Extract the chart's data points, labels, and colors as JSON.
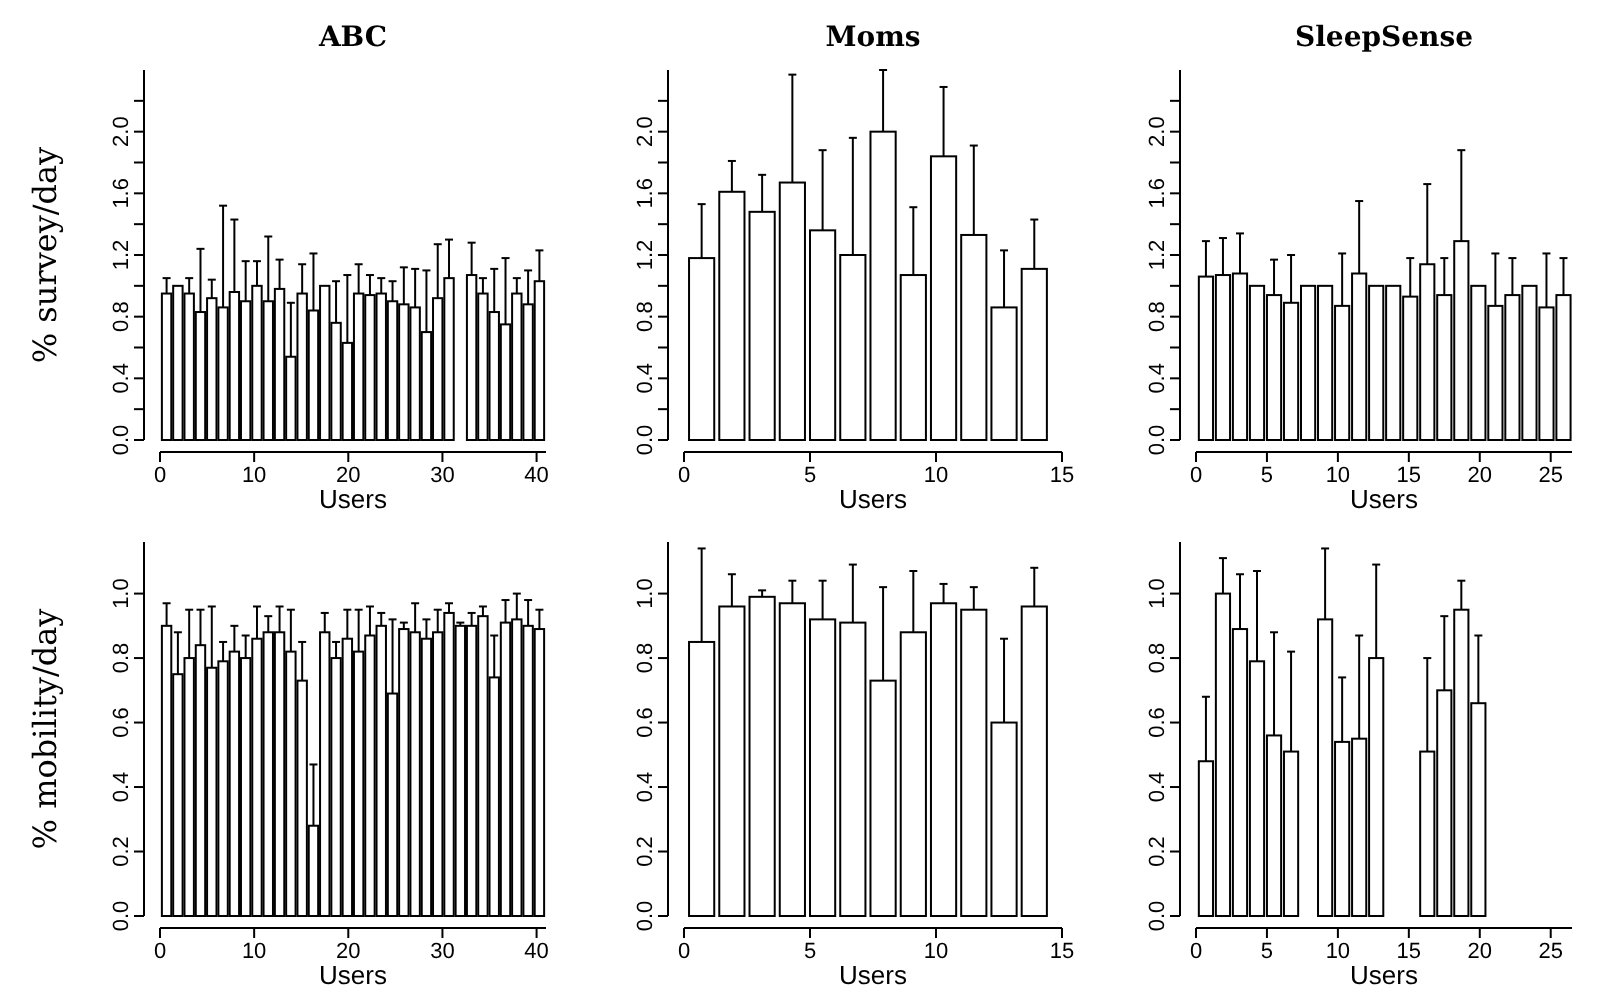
{
  "chart_data": [
    {
      "type": "bar",
      "title": "ABC",
      "ylabel": "% survey/day",
      "xlabel": "Users",
      "color": "#ffffff",
      "x": [
        0.7,
        1.9,
        3.1,
        4.3,
        5.5,
        6.7,
        7.9,
        9.1,
        10.3,
        11.5,
        12.7,
        13.9,
        15.1,
        16.3,
        17.5,
        18.7,
        19.9,
        21.1,
        22.3,
        23.5,
        24.7,
        25.9,
        27.1,
        28.3,
        29.5,
        30.7,
        33.1,
        34.3,
        35.5,
        36.7,
        37.9,
        39.1,
        40.3
      ],
      "values": [
        0.95,
        1.0,
        0.95,
        0.83,
        0.92,
        0.86,
        0.96,
        0.9,
        1.0,
        0.9,
        0.98,
        0.54,
        0.95,
        0.84,
        1.0,
        0.76,
        0.63,
        0.95,
        0.94,
        0.95,
        0.9,
        0.88,
        0.86,
        0.7,
        0.92,
        1.05,
        1.07,
        0.95,
        0.83,
        0.75,
        0.95,
        0.88,
        1.03
      ],
      "errors": [
        [
          0.95,
          1.05
        ],
        null,
        [
          0.95,
          1.05
        ],
        [
          0.83,
          1.24
        ],
        [
          0.92,
          1.04
        ],
        [
          0.86,
          1.52
        ],
        [
          0.96,
          1.43
        ],
        [
          0.9,
          1.16
        ],
        [
          1.0,
          1.16
        ],
        [
          0.9,
          1.32
        ],
        [
          0.98,
          1.17
        ],
        [
          0.54,
          0.89
        ],
        [
          0.95,
          1.14
        ],
        [
          0.84,
          1.21
        ],
        null,
        [
          0.76,
          1.03
        ],
        [
          0.63,
          1.07
        ],
        [
          0.95,
          1.14
        ],
        [
          0.94,
          1.07
        ],
        [
          0.95,
          1.05
        ],
        [
          0.9,
          1.03
        ],
        [
          0.88,
          1.12
        ],
        [
          0.86,
          1.11
        ],
        [
          0.7,
          1.1
        ],
        [
          0.92,
          1.27
        ],
        [
          1.05,
          1.3
        ],
        [
          1.07,
          1.28
        ],
        [
          0.95,
          1.05
        ],
        [
          0.83,
          1.11
        ],
        [
          0.75,
          1.18
        ],
        [
          0.95,
          1.05
        ],
        [
          0.88,
          1.1
        ],
        [
          1.03,
          1.23
        ]
      ],
      "xlim": [
        0,
        41
      ],
      "ylim": [
        0,
        2.4
      ],
      "xticks": [
        0,
        10,
        20,
        30,
        40
      ],
      "yticks": [
        {
          "value": 0,
          "label": "0.0"
        },
        {
          "value": 0.2,
          "label": null
        },
        {
          "value": 0.4,
          "label": "0.4"
        },
        {
          "value": 0.6,
          "label": null
        },
        {
          "value": 0.8,
          "label": "0.8"
        },
        {
          "value": 1,
          "label": null
        },
        {
          "value": 1.2,
          "label": "1.2"
        },
        {
          "value": 1.4,
          "label": null
        },
        {
          "value": 1.6,
          "label": "1.6"
        },
        {
          "value": 1.8,
          "label": null
        },
        {
          "value": 2,
          "label": "2.0"
        },
        {
          "value": 2.2,
          "label": null
        }
      ]
    },
    {
      "type": "bar",
      "title": "Moms",
      "xlabel": "Users",
      "color": "#ffffff",
      "x": [
        0.7,
        1.9,
        3.1,
        4.3,
        5.5,
        6.7,
        7.9,
        9.1,
        10.3,
        11.5,
        12.7,
        13.9
      ],
      "values": [
        1.18,
        1.61,
        1.48,
        1.67,
        1.36,
        1.2,
        2.0,
        1.07,
        1.84,
        1.33,
        0.86,
        1.11
      ],
      "errors": [
        [
          1.18,
          1.53
        ],
        [
          1.61,
          1.81
        ],
        [
          1.48,
          1.72
        ],
        [
          1.67,
          2.37
        ],
        [
          1.36,
          1.88
        ],
        [
          1.2,
          1.96
        ],
        [
          2.0,
          2.4
        ],
        [
          1.07,
          1.51
        ],
        [
          1.84,
          2.29
        ],
        [
          1.33,
          1.91
        ],
        [
          0.86,
          1.23
        ],
        [
          1.11,
          1.43
        ]
      ],
      "xlim": [
        0,
        15
      ],
      "ylim": [
        0,
        2.4
      ],
      "xticks": [
        0,
        5,
        10,
        15
      ],
      "yticks": [
        {
          "value": 0,
          "label": "0.0"
        },
        {
          "value": 0.2,
          "label": null
        },
        {
          "value": 0.4,
          "label": "0.4"
        },
        {
          "value": 0.6,
          "label": null
        },
        {
          "value": 0.8,
          "label": "0.8"
        },
        {
          "value": 1,
          "label": null
        },
        {
          "value": 1.2,
          "label": "1.2"
        },
        {
          "value": 1.4,
          "label": null
        },
        {
          "value": 1.6,
          "label": "1.6"
        },
        {
          "value": 1.8,
          "label": null
        },
        {
          "value": 2,
          "label": "2.0"
        },
        {
          "value": 2.2,
          "label": null
        }
      ]
    },
    {
      "type": "bar",
      "title": "SleepSense",
      "xlabel": "Users",
      "color": "#ffffff",
      "x": [
        0.7,
        1.9,
        3.1,
        4.3,
        5.5,
        6.7,
        7.9,
        9.1,
        10.3,
        11.5,
        12.7,
        13.9,
        15.1,
        16.3,
        17.5,
        18.7,
        19.9,
        21.1,
        22.3,
        23.5,
        24.7,
        25.9
      ],
      "values": [
        1.06,
        1.07,
        1.08,
        1.0,
        0.94,
        0.89,
        1.0,
        1.0,
        0.87,
        1.08,
        1.0,
        1.0,
        0.93,
        1.14,
        0.94,
        1.29,
        1.0,
        0.87,
        0.94,
        1.0,
        0.86,
        0.94
      ],
      "errors": [
        [
          1.06,
          1.29
        ],
        [
          1.07,
          1.31
        ],
        [
          1.08,
          1.34
        ],
        null,
        [
          0.94,
          1.17
        ],
        [
          0.89,
          1.2
        ],
        null,
        null,
        [
          0.87,
          1.21
        ],
        [
          1.08,
          1.55
        ],
        null,
        null,
        [
          0.93,
          1.18
        ],
        [
          1.14,
          1.66
        ],
        [
          0.94,
          1.18
        ],
        [
          1.29,
          1.88
        ],
        null,
        [
          0.87,
          1.21
        ],
        [
          0.94,
          1.18
        ],
        null,
        [
          0.86,
          1.21
        ],
        [
          0.94,
          1.18
        ]
      ],
      "xlim": [
        0,
        26.5
      ],
      "ylim": [
        0,
        2.4
      ],
      "xticks": [
        0,
        5,
        10,
        15,
        20,
        25
      ],
      "yticks": [
        {
          "value": 0,
          "label": "0.0"
        },
        {
          "value": 0.2,
          "label": null
        },
        {
          "value": 0.4,
          "label": "0.4"
        },
        {
          "value": 0.6,
          "label": null
        },
        {
          "value": 0.8,
          "label": "0.8"
        },
        {
          "value": 1,
          "label": null
        },
        {
          "value": 1.2,
          "label": "1.2"
        },
        {
          "value": 1.4,
          "label": null
        },
        {
          "value": 1.6,
          "label": "1.6"
        },
        {
          "value": 1.8,
          "label": null
        },
        {
          "value": 2,
          "label": "2.0"
        },
        {
          "value": 2.2,
          "label": null
        }
      ]
    },
    {
      "type": "bar",
      "ylabel": "% mobility/day",
      "xlabel": "Users",
      "color": "#ffffff",
      "x": [
        0.7,
        1.9,
        3.1,
        4.3,
        5.5,
        6.7,
        7.9,
        9.1,
        10.3,
        11.5,
        12.7,
        13.9,
        15.1,
        16.3,
        17.5,
        18.7,
        19.9,
        21.1,
        22.3,
        23.5,
        24.7,
        25.9,
        27.1,
        28.3,
        29.5,
        30.7,
        31.9,
        33.1,
        34.3,
        35.5,
        36.7,
        37.9,
        39.1,
        40.3
      ],
      "values": [
        0.9,
        0.75,
        0.8,
        0.84,
        0.77,
        0.79,
        0.82,
        0.8,
        0.86,
        0.88,
        0.88,
        0.82,
        0.73,
        0.28,
        0.88,
        0.8,
        0.86,
        0.82,
        0.87,
        0.9,
        0.69,
        0.89,
        0.88,
        0.86,
        0.88,
        0.94,
        0.9,
        0.9,
        0.93,
        0.74,
        0.91,
        0.92,
        0.9,
        0.89
      ],
      "errors": [
        [
          0.9,
          0.97
        ],
        [
          0.75,
          0.88
        ],
        [
          0.8,
          0.95
        ],
        [
          0.84,
          0.95
        ],
        [
          0.77,
          0.96
        ],
        [
          0.79,
          0.85
        ],
        [
          0.82,
          0.9
        ],
        [
          0.8,
          0.87
        ],
        [
          0.86,
          0.96
        ],
        [
          0.88,
          0.93
        ],
        [
          0.88,
          0.96
        ],
        [
          0.82,
          0.95
        ],
        [
          0.73,
          0.85
        ],
        [
          0.28,
          0.47
        ],
        [
          0.88,
          0.94
        ],
        [
          0.8,
          0.85
        ],
        [
          0.86,
          0.95
        ],
        [
          0.82,
          0.95
        ],
        [
          0.87,
          0.96
        ],
        [
          0.9,
          0.94
        ],
        [
          0.69,
          0.92
        ],
        [
          0.89,
          0.91
        ],
        [
          0.88,
          0.97
        ],
        [
          0.86,
          0.92
        ],
        [
          0.88,
          0.95
        ],
        [
          0.94,
          0.97
        ],
        [
          0.9,
          0.91
        ],
        [
          0.9,
          0.94
        ],
        [
          0.93,
          0.96
        ],
        [
          0.74,
          0.87
        ],
        [
          0.91,
          0.98
        ],
        [
          0.92,
          1.0
        ],
        [
          0.9,
          0.98
        ],
        [
          0.89,
          0.95
        ]
      ],
      "xlim": [
        0,
        41
      ],
      "ylim": [
        0,
        1.16
      ],
      "xticks": [
        0,
        10,
        20,
        30,
        40
      ],
      "yticks": [
        {
          "value": 0,
          "label": "0.0"
        },
        {
          "value": 0.2,
          "label": "0.2"
        },
        {
          "value": 0.4,
          "label": "0.4"
        },
        {
          "value": 0.6,
          "label": "0.6"
        },
        {
          "value": 0.8,
          "label": "0.8"
        },
        {
          "value": 1,
          "label": "1.0"
        }
      ]
    },
    {
      "type": "bar",
      "xlabel": "Users",
      "color": "#ffffff",
      "x": [
        0.7,
        1.9,
        3.1,
        4.3,
        5.5,
        6.7,
        7.9,
        9.1,
        10.3,
        11.5,
        12.7,
        13.9
      ],
      "values": [
        0.85,
        0.96,
        0.99,
        0.97,
        0.92,
        0.91,
        0.73,
        0.88,
        0.97,
        0.95,
        0.6,
        0.96
      ],
      "errors": [
        [
          0.85,
          1.14
        ],
        [
          0.96,
          1.06
        ],
        [
          0.99,
          1.01
        ],
        [
          0.97,
          1.04
        ],
        [
          0.92,
          1.04
        ],
        [
          0.91,
          1.09
        ],
        [
          0.73,
          1.02
        ],
        [
          0.88,
          1.07
        ],
        [
          0.97,
          1.03
        ],
        [
          0.95,
          1.02
        ],
        [
          0.6,
          0.86
        ],
        [
          0.96,
          1.08
        ]
      ],
      "xlim": [
        0,
        15
      ],
      "ylim": [
        0,
        1.16
      ],
      "xticks": [
        0,
        5,
        10,
        15
      ],
      "yticks": [
        {
          "value": 0,
          "label": "0.0"
        },
        {
          "value": 0.2,
          "label": "0.2"
        },
        {
          "value": 0.4,
          "label": "0.4"
        },
        {
          "value": 0.6,
          "label": "0.6"
        },
        {
          "value": 0.8,
          "label": "0.8"
        },
        {
          "value": 1,
          "label": "1.0"
        }
      ]
    },
    {
      "type": "bar",
      "xlabel": "Users",
      "color": "#ffffff",
      "x": [
        0.7,
        1.9,
        3.1,
        4.3,
        5.5,
        6.7,
        9.1,
        10.3,
        11.5,
        12.7,
        16.3,
        17.5,
        18.7,
        19.9
      ],
      "values": [
        0.48,
        1.0,
        0.89,
        0.79,
        0.56,
        0.51,
        0.92,
        0.54,
        0.55,
        0.8,
        0.51,
        0.7,
        0.95,
        0.66
      ],
      "errors": [
        [
          0.48,
          0.68
        ],
        [
          1.0,
          1.11
        ],
        [
          0.89,
          1.06
        ],
        [
          0.79,
          1.07
        ],
        [
          0.56,
          0.88
        ],
        [
          0.51,
          0.82
        ],
        [
          0.92,
          1.14
        ],
        [
          0.54,
          0.74
        ],
        [
          0.55,
          0.87
        ],
        [
          0.8,
          1.09
        ],
        [
          0.51,
          0.8
        ],
        [
          0.7,
          0.93
        ],
        [
          0.95,
          1.04
        ],
        [
          0.66,
          0.87
        ]
      ],
      "xlim": [
        0,
        26.5
      ],
      "ylim": [
        0,
        1.16
      ],
      "xticks": [
        0,
        5,
        10,
        15,
        20,
        25
      ],
      "yticks": [
        {
          "value": 0,
          "label": "0.0"
        },
        {
          "value": 0.2,
          "label": "0.2"
        },
        {
          "value": 0.4,
          "label": "0.4"
        },
        {
          "value": 0.6,
          "label": "0.6"
        },
        {
          "value": 0.8,
          "label": "0.8"
        },
        {
          "value": 1,
          "label": "1.0"
        }
      ]
    }
  ]
}
